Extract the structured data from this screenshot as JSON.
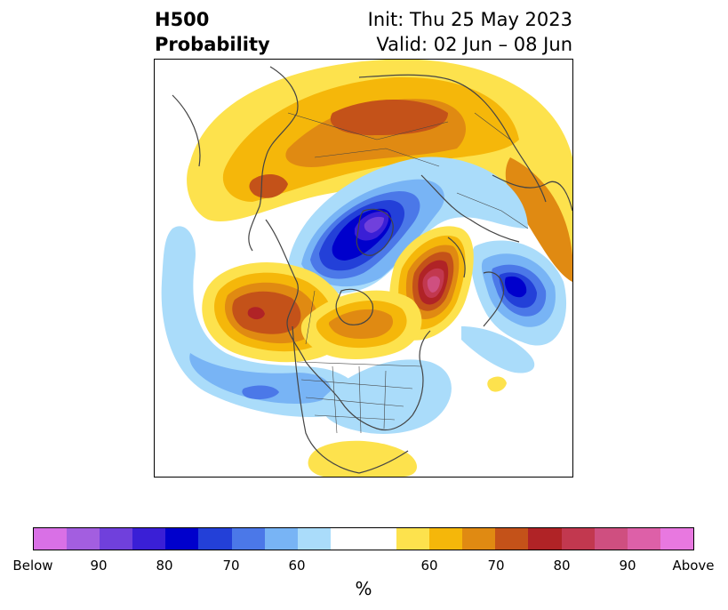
{
  "title": {
    "left_line1": "H500",
    "left_line2": "Probability",
    "right_line1": "Init: Thu 25 May 2023",
    "right_line2": "Valid: 02 Jun – 08 Jun"
  },
  "map": {
    "projection": "north-polar-stereographic",
    "field": "H500 probability anomaly",
    "features": [
      {
        "label": "below-center-greenland-baffin",
        "category": "Below",
        "peak_percent": 90
      },
      {
        "label": "below-center-northern-europe",
        "category": "Below",
        "peak_percent": 80
      },
      {
        "label": "below-center-north-pacific",
        "category": "Below",
        "peak_percent": 60
      },
      {
        "label": "above-center-east-siberia",
        "category": "Above",
        "peak_percent": 90
      },
      {
        "label": "above-center-north-pacific-alaska",
        "category": "Above",
        "peak_percent": 80
      },
      {
        "label": "above-center-hudson-bay",
        "category": "Above",
        "peak_percent": 70
      },
      {
        "label": "above-center-central-asia",
        "category": "Above",
        "peak_percent": 70
      },
      {
        "label": "above-center-mexico-gulf",
        "category": "Above",
        "peak_percent": 60
      }
    ]
  },
  "colorbar": {
    "colors": [
      "#d970e6",
      "#a35ee0",
      "#7040dc",
      "#3a1fd6",
      "#0000cc",
      "#2340d8",
      "#4b78e8",
      "#78b4f5",
      "#aadcfa",
      "#ffffff",
      "#ffffff",
      "#fde24d",
      "#f5b70a",
      "#e08a12",
      "#c45219",
      "#b02326",
      "#c2384f",
      "#cf4f80",
      "#dd60a8",
      "#e878e0"
    ],
    "tick_labels": [
      "Below",
      "90",
      "80",
      "70",
      "60",
      "60",
      "70",
      "80",
      "90",
      "Above"
    ],
    "unit": "%"
  }
}
